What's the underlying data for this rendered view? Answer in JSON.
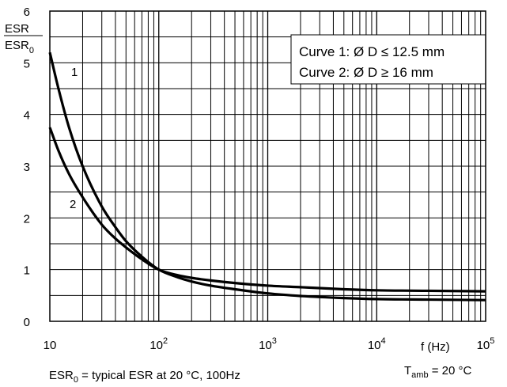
{
  "chart_data": {
    "type": "line",
    "x_scale": "log",
    "xlim": [
      10,
      100000
    ],
    "ylim": [
      0,
      6
    ],
    "grid": true,
    "y_label_num": "ESR",
    "y_label_den_base": "ESR",
    "y_label_den_sub": "0",
    "x_label": "f  (Hz)",
    "y_ticks": [
      "0",
      "1",
      "2",
      "3",
      "4",
      "5",
      "6"
    ],
    "x_ticks": [
      {
        "base": "10",
        "exp": ""
      },
      {
        "base": "10",
        "exp": "2"
      },
      {
        "base": "10",
        "exp": "3"
      },
      {
        "base": "10",
        "exp": "4"
      },
      {
        "base": "10",
        "exp": "5"
      }
    ],
    "legend": {
      "line1": "Curve 1: Ø D ≤ 12.5 mm",
      "line2": "Curve 2: Ø D ≥ 16 mm",
      "position": "top-right"
    },
    "footnote_left": {
      "base": "ESR",
      "sub": "0",
      "rest": " = typical ESR at 20 °C, 100Hz"
    },
    "footnote_right": {
      "base": "T",
      "sub": "amb",
      "rest": " = 20 °C"
    },
    "series": [
      {
        "name": "1",
        "x": [
          10,
          12,
          15,
          20,
          30,
          40,
          50,
          70,
          100,
          150,
          200,
          300,
          500,
          1000,
          2000,
          5000,
          10000,
          30000,
          100000
        ],
        "y": [
          5.2,
          4.5,
          3.75,
          3.0,
          2.22,
          1.82,
          1.55,
          1.25,
          1.0,
          0.85,
          0.77,
          0.69,
          0.62,
          0.54,
          0.49,
          0.45,
          0.43,
          0.42,
          0.41
        ]
      },
      {
        "name": "2",
        "x": [
          10,
          12,
          15,
          20,
          30,
          40,
          50,
          70,
          100,
          150,
          200,
          300,
          500,
          1000,
          2000,
          5000,
          10000,
          30000,
          100000
        ],
        "y": [
          3.75,
          3.3,
          2.85,
          2.4,
          1.87,
          1.6,
          1.43,
          1.2,
          1.0,
          0.89,
          0.84,
          0.79,
          0.74,
          0.69,
          0.66,
          0.62,
          0.6,
          0.59,
          0.58
        ]
      }
    ]
  }
}
